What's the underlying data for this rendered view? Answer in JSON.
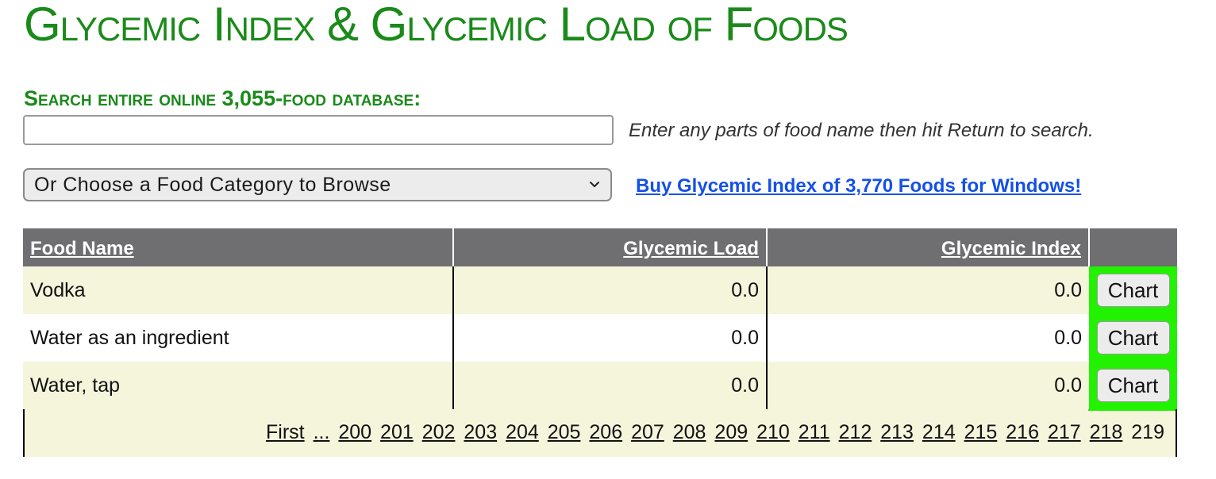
{
  "page": {
    "title": "Glycemic Index & Glycemic Load of Foods"
  },
  "search": {
    "heading": "Search entire online 3,055-food database:",
    "value": "",
    "placeholder": "",
    "hint": "Enter any parts of food name then hit Return to search."
  },
  "category": {
    "selected": "Or Choose a Food Category to Browse"
  },
  "buy_link": {
    "label": "Buy Glycemic Index of 3,770 Foods for Windows!"
  },
  "table": {
    "columns": [
      "Food Name",
      "Glycemic Load",
      "Glycemic Index"
    ],
    "rows": [
      {
        "name": "Vodka",
        "gl": "0.0",
        "gi": "0.0",
        "button": "Chart"
      },
      {
        "name": "Water as an ingredient",
        "gl": "0.0",
        "gi": "0.0",
        "button": "Chart"
      },
      {
        "name": "Water, tap",
        "gl": "0.0",
        "gi": "0.0",
        "button": "Chart"
      }
    ]
  },
  "pager": {
    "first_label": "First",
    "ellipsis": "...",
    "pages": [
      "200",
      "201",
      "202",
      "203",
      "204",
      "205",
      "206",
      "207",
      "208",
      "209",
      "210",
      "211",
      "212",
      "213",
      "214",
      "215",
      "216",
      "217",
      "218"
    ],
    "current": "219"
  },
  "colors": {
    "title_green": "#1a8a1a",
    "header_gray": "#6f6e70",
    "row_beige": "#f5f5dc",
    "chart_green": "#22f200",
    "link_blue": "#1550e6"
  }
}
